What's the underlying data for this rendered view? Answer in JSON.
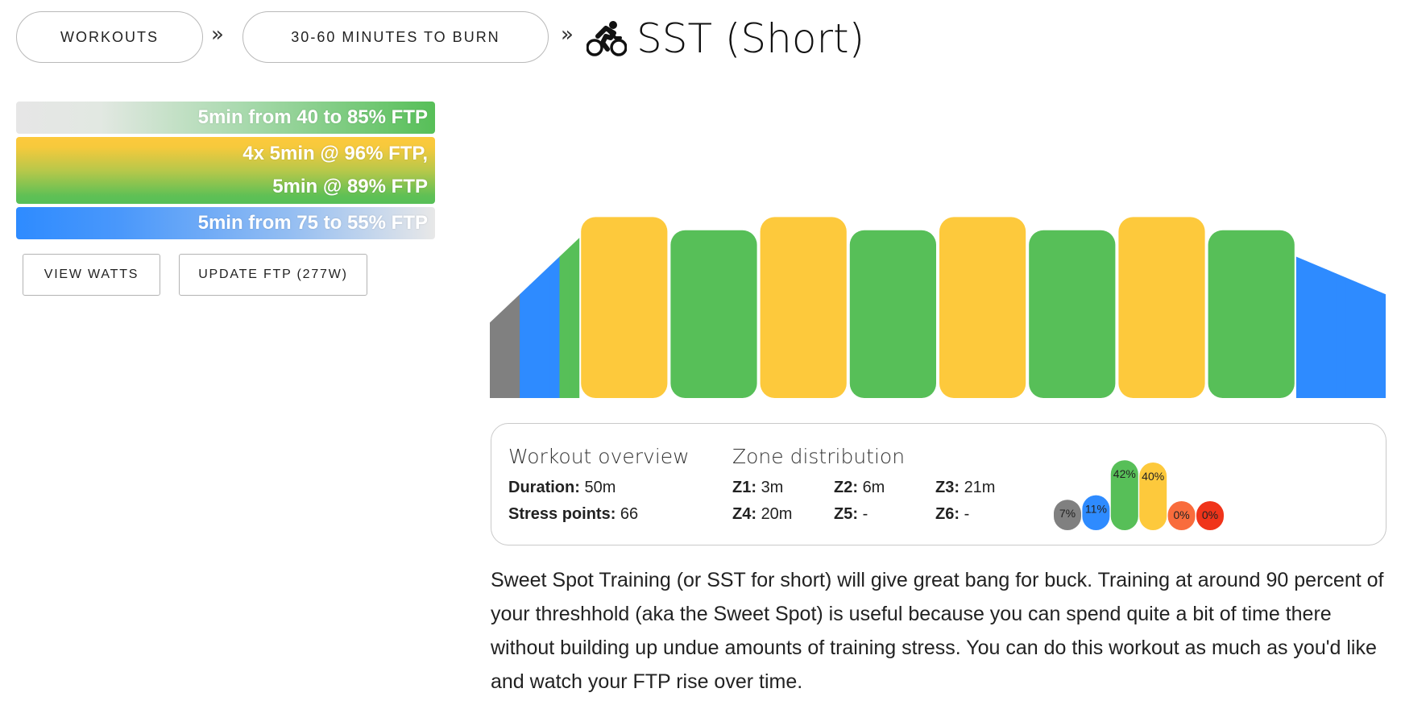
{
  "breadcrumb": {
    "items": [
      {
        "label": "WORKOUTS"
      },
      {
        "label": "30-60 MINUTES TO BURN"
      }
    ],
    "separator": "»",
    "title_icon": "cyclist-icon",
    "title": "SST (Short)"
  },
  "steps": [
    {
      "text": "5min from 40 to 85% FTP"
    },
    {
      "line1": "4x 5min @ 96% FTP,",
      "line2": "5min @ 89% FTP"
    },
    {
      "text": "5min from 75 to 55% FTP"
    }
  ],
  "buttons": {
    "view_watts": "VIEW WATTS",
    "update_ftp": "UPDATE FTP (277W)"
  },
  "colors": {
    "z1": "#808080",
    "z2": "#2e8bff",
    "z3": "#57bf58",
    "z4": "#fdc93c",
    "z5": "#f96c3c",
    "z6": "#f0341a"
  },
  "workout_profile": {
    "unit": "% FTP",
    "segments": [
      {
        "type": "ramp",
        "minutes": 5,
        "from": 40,
        "to": 85
      },
      {
        "type": "steady",
        "minutes": 5,
        "power": 96
      },
      {
        "type": "steady",
        "minutes": 5,
        "power": 89
      },
      {
        "type": "steady",
        "minutes": 5,
        "power": 96
      },
      {
        "type": "steady",
        "minutes": 5,
        "power": 89
      },
      {
        "type": "steady",
        "minutes": 5,
        "power": 96
      },
      {
        "type": "steady",
        "minutes": 5,
        "power": 89
      },
      {
        "type": "steady",
        "minutes": 5,
        "power": 96
      },
      {
        "type": "steady",
        "minutes": 5,
        "power": 89
      },
      {
        "type": "ramp",
        "minutes": 5,
        "from": 75,
        "to": 55
      }
    ]
  },
  "overview": {
    "heading": "Workout overview",
    "duration_label": "Duration:",
    "duration_value": "50m",
    "stress_label": "Stress points:",
    "stress_value": "66"
  },
  "zones": {
    "heading": "Zone distribution",
    "items": [
      {
        "label": "Z1:",
        "value": "3m"
      },
      {
        "label": "Z2:",
        "value": "6m"
      },
      {
        "label": "Z3:",
        "value": "21m"
      },
      {
        "label": "Z4:",
        "value": "20m"
      },
      {
        "label": "Z5:",
        "value": "-"
      },
      {
        "label": "Z6:",
        "value": "-"
      }
    ]
  },
  "chart_data": {
    "type": "bar",
    "categories": [
      "Z1",
      "Z2",
      "Z3",
      "Z4",
      "Z5",
      "Z6"
    ],
    "values": [
      7,
      11,
      42,
      40,
      0,
      0
    ],
    "labels": [
      "7%",
      "11%",
      "42%",
      "40%",
      "0%",
      "0%"
    ],
    "title": "",
    "xlabel": "",
    "ylabel": ""
  },
  "description": "Sweet Spot Training (or SST for short) will give great bang for buck. Training at around 90 percent of your threshhold (aka the Sweet Spot) is useful because you can spend quite a bit of time there without building up undue amounts of training stress. You can do this workout as much as you'd like and watch your FTP rise over time."
}
